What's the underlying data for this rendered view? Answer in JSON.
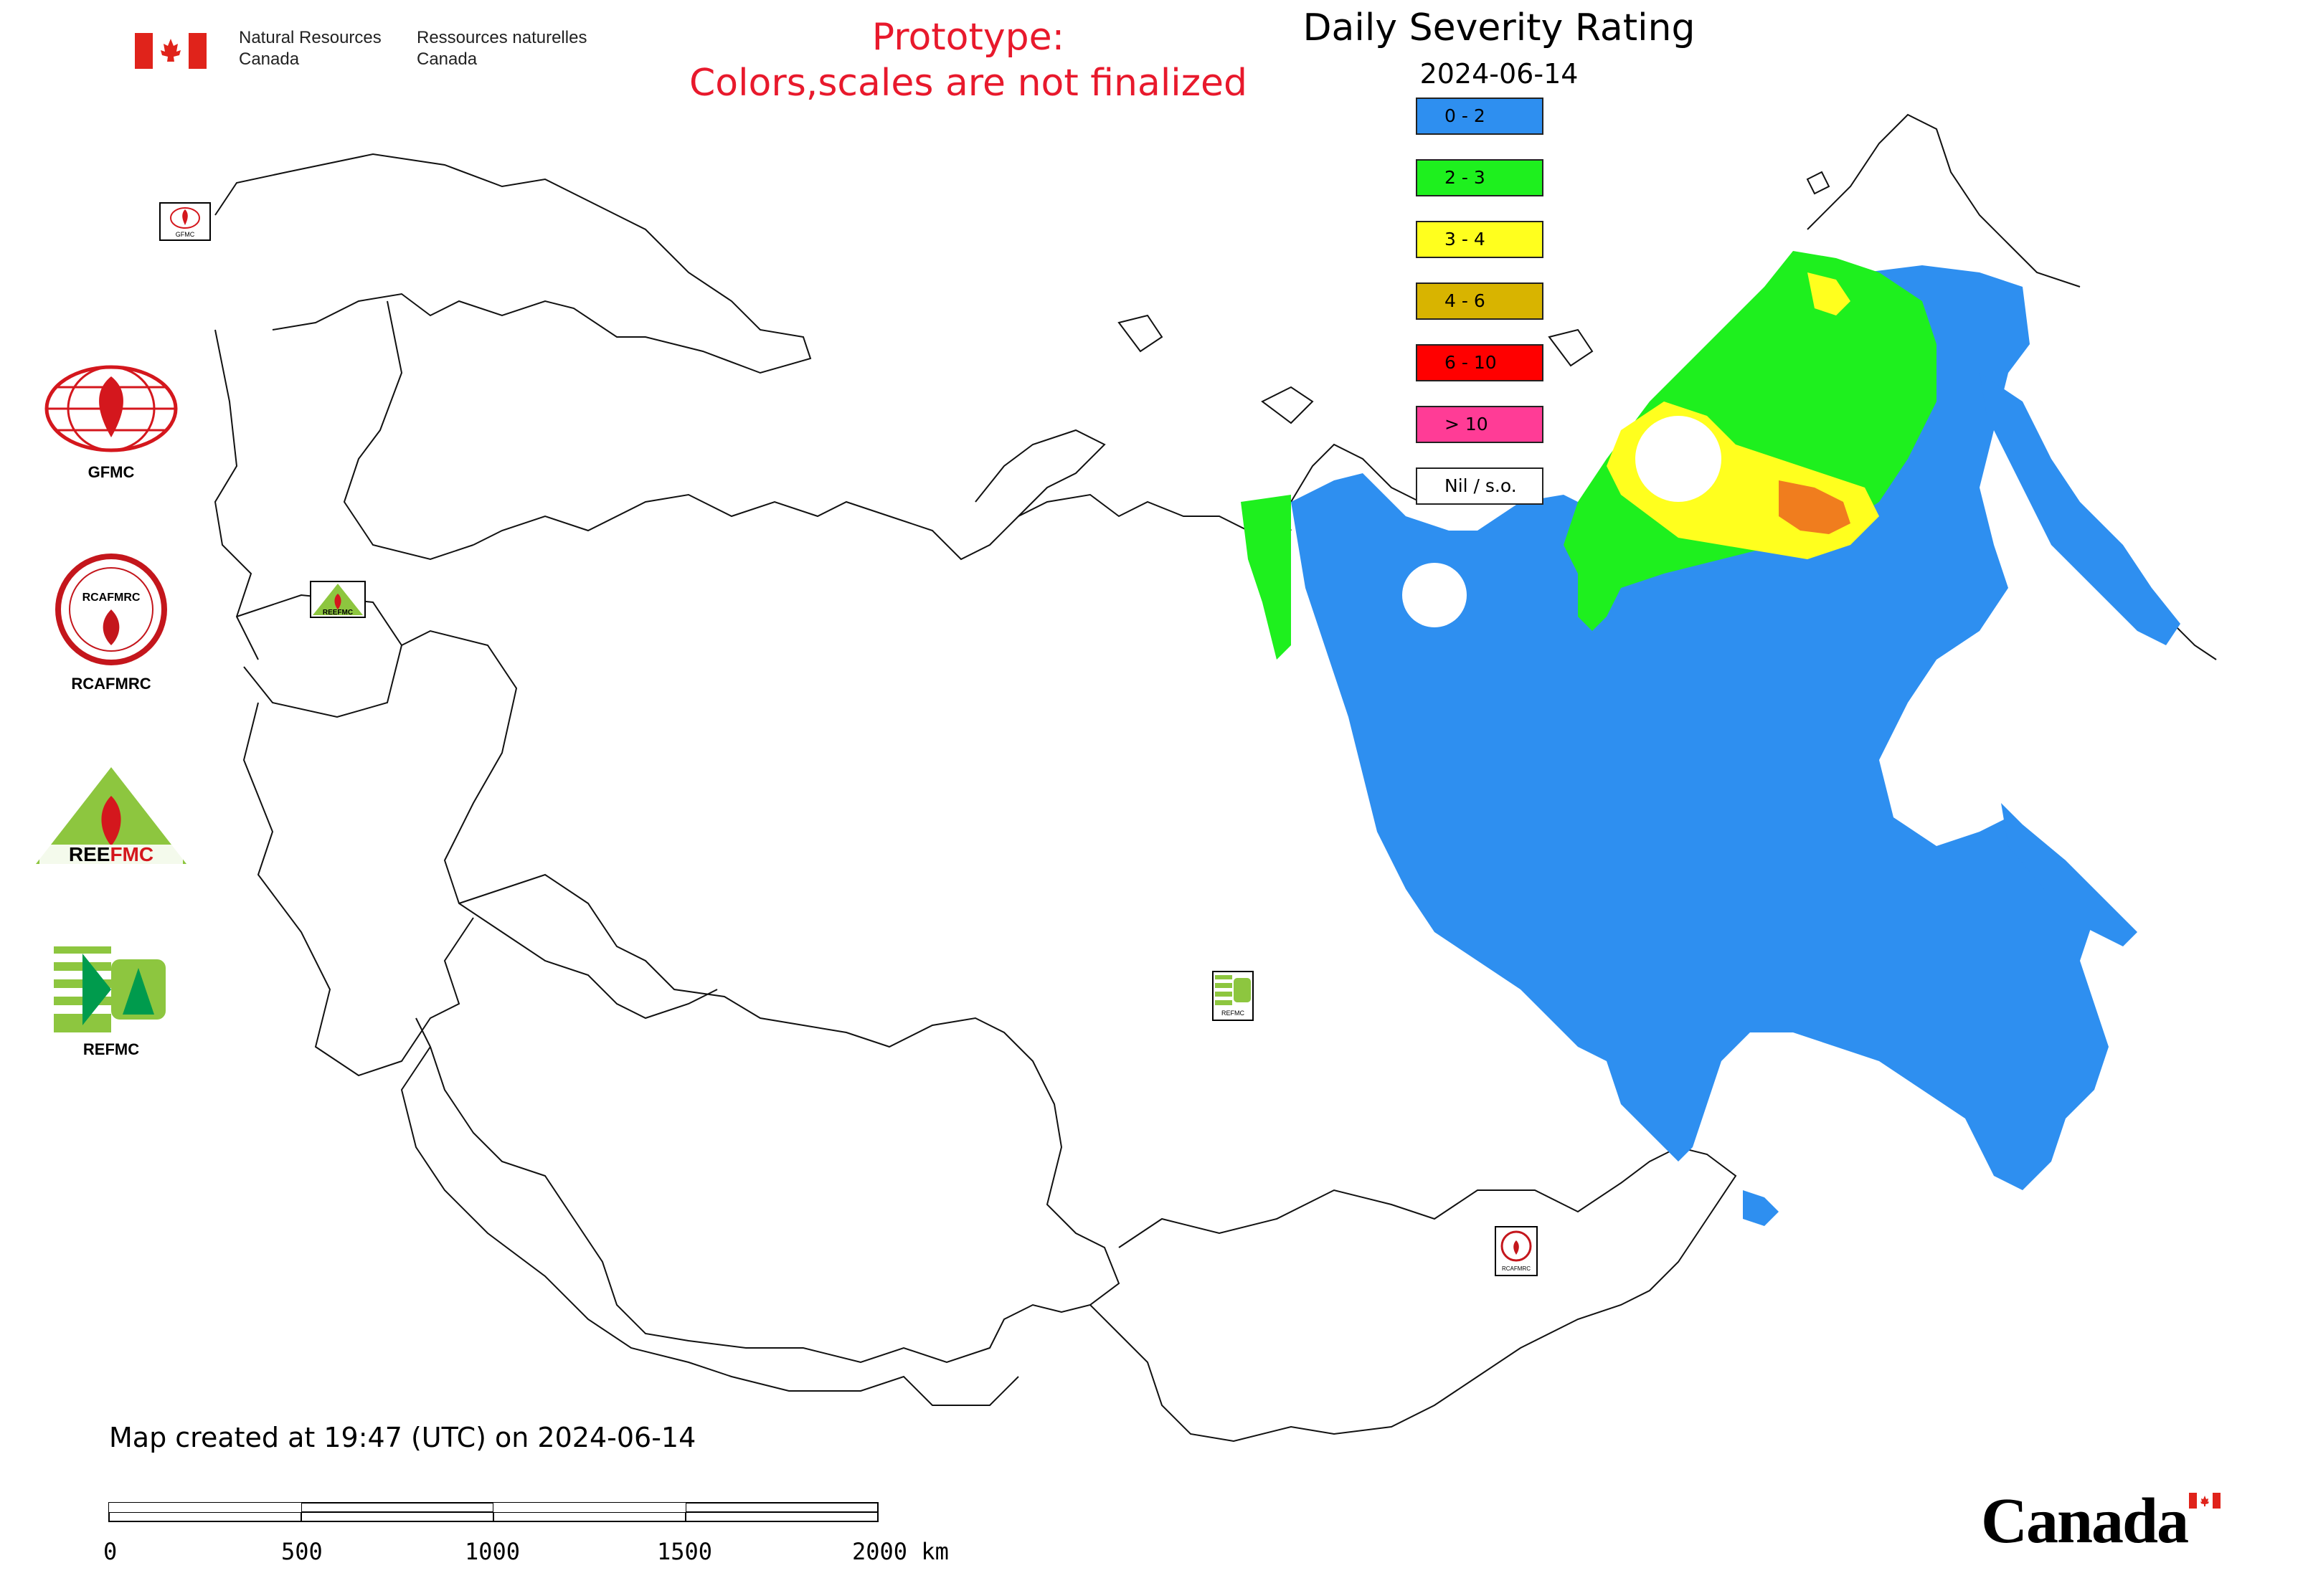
{
  "header": {
    "org_en": "Natural Resources\nCanada",
    "org_fr": "Ressources naturelles\nCanada",
    "prototype_line1": "Prototype:",
    "prototype_line2": "Colors,scales are not finalized"
  },
  "legend": {
    "title": "Daily Severity Rating",
    "date": "2024-06-14",
    "items": [
      {
        "label": "0 - 2",
        "color": "#2e8ff0"
      },
      {
        "label": "2 - 3",
        "color": "#1ef01e"
      },
      {
        "label": "3 - 4",
        "color": "#ffff1e"
      },
      {
        "label": "4 - 6",
        "color": "#d8b400"
      },
      {
        "label": "6 - 10",
        "color": "#ff0000"
      },
      {
        "label": "> 10",
        "color": "#ff3c96"
      },
      {
        "label": "Nil / s.o.",
        "color": "#ffffff"
      }
    ]
  },
  "logos": [
    {
      "label": "GFMC",
      "icon": "gfmc-logo"
    },
    {
      "label": "RCAFMRC",
      "icon": "rcafmrc-logo"
    },
    {
      "label": "REEFMC",
      "icon": "reefmc-logo"
    },
    {
      "label": "REFMC",
      "icon": "refmc-logo"
    }
  ],
  "footer": {
    "map_created": "Map created at 19:47 (UTC) on 2024-06-14",
    "scale_labels": [
      "0",
      "500",
      "1000",
      "1500",
      "2000 km"
    ],
    "wordmark": "Canada"
  },
  "map": {
    "stamp_labels": [
      "GFMC",
      "REEFMC",
      "REFMC",
      "RCAFMRC"
    ]
  }
}
